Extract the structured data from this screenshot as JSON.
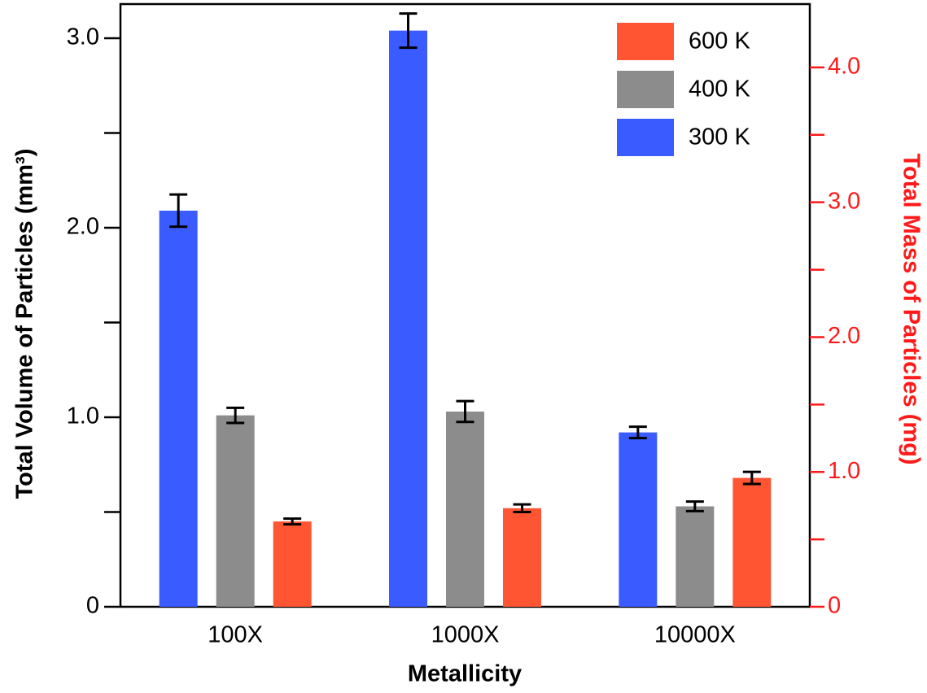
{
  "chart_data": {
    "type": "bar",
    "xlabel": "Metallicity",
    "ylabel": "Total Volume of Particles (mm³)",
    "y2label": "Total Mass of Particles (mg)",
    "categories": [
      "100X",
      "1000X",
      "10000X"
    ],
    "series": [
      {
        "name": "300 K",
        "color": "#3a5bff",
        "values": [
          2.09,
          3.04,
          0.92
        ],
        "errors": [
          0.085,
          0.09,
          0.03
        ]
      },
      {
        "name": "400 K",
        "color": "#8c8c8c",
        "values": [
          1.01,
          1.03,
          0.53
        ],
        "errors": [
          0.04,
          0.055,
          0.025
        ]
      },
      {
        "name": "600 K",
        "color": "#ff5533",
        "values": [
          0.45,
          0.52,
          0.68
        ],
        "errors": [
          0.015,
          0.02,
          0.032
        ]
      }
    ],
    "ylim": [
      0,
      3.18
    ],
    "yticks": [
      0,
      {
        "value": 1,
        "label": "1.0"
      },
      {
        "value": 2,
        "label": "2.0"
      },
      {
        "value": 3,
        "label": "3.0"
      }
    ],
    "yminor": [
      0.5,
      1.5,
      2.5
    ],
    "y2lim": [
      0,
      4.47
    ],
    "y2ticks": [
      0,
      {
        "value": 1,
        "label": "1.0"
      },
      {
        "value": 2,
        "label": "2.0"
      },
      {
        "value": 3,
        "label": "3.0"
      },
      {
        "value": 4,
        "label": "4.0"
      }
    ],
    "y2minor": [
      0.5,
      1.5,
      2.5,
      3.5
    ],
    "y2color": "#ff1a1a",
    "legend": "upper right",
    "grid": false
  }
}
